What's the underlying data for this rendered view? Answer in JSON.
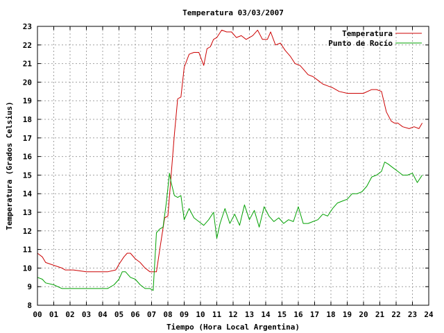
{
  "chart_data": {
    "type": "line",
    "title": "Temperatura 03/03/2007",
    "xlabel": "Tiempo (Hora Local Argentina)",
    "ylabel": "Temperatura (Grados Celsius)",
    "xlim": [
      0,
      24
    ],
    "ylim": [
      8,
      23
    ],
    "x_ticks": [
      "00",
      "01",
      "02",
      "03",
      "04",
      "05",
      "06",
      "07",
      "08",
      "09",
      "10",
      "11",
      "12",
      "13",
      "14",
      "15",
      "16",
      "17",
      "18",
      "19",
      "20",
      "21",
      "22",
      "23",
      "24"
    ],
    "y_ticks": [
      "8",
      "9",
      "10",
      "11",
      "12",
      "13",
      "14",
      "15",
      "16",
      "17",
      "18",
      "19",
      "20",
      "21",
      "22",
      "23"
    ],
    "grid": true,
    "legend_position": "top-right",
    "series": [
      {
        "name": "Temperatura",
        "color": "#cc0000",
        "x": [
          0,
          0.3,
          0.5,
          1.5,
          1.7,
          2.2,
          3.0,
          3.5,
          4.0,
          4.3,
          4.8,
          5.0,
          5.3,
          5.5,
          5.7,
          6.0,
          6.3,
          6.6,
          6.9,
          7.1,
          7.3,
          7.5,
          7.8,
          8.0,
          8.2,
          8.4,
          8.6,
          8.8,
          9.0,
          9.3,
          9.6,
          9.9,
          10.2,
          10.4,
          10.6,
          10.8,
          11.0,
          11.3,
          11.6,
          11.9,
          12.2,
          12.5,
          12.8,
          13.2,
          13.5,
          13.8,
          14.1,
          14.3,
          14.6,
          14.9,
          15.2,
          15.5,
          15.8,
          16.1,
          16.3,
          16.6,
          16.9,
          17.2,
          17.5,
          17.8,
          18.1,
          18.5,
          19.0,
          19.5,
          20.0,
          20.5,
          20.8,
          21.1,
          21.4,
          21.7,
          21.9,
          22.1,
          22.4,
          22.8,
          23.1,
          23.4,
          23.6
        ],
        "y": [
          10.8,
          10.6,
          10.3,
          10.0,
          9.9,
          9.9,
          9.8,
          9.8,
          9.8,
          9.8,
          9.9,
          10.2,
          10.6,
          10.8,
          10.8,
          10.5,
          10.3,
          10.0,
          9.8,
          9.8,
          9.8,
          11.0,
          12.7,
          12.8,
          15.0,
          17.2,
          19.1,
          19.2,
          20.8,
          21.5,
          21.6,
          21.6,
          20.9,
          21.8,
          21.9,
          22.3,
          22.4,
          22.8,
          22.7,
          22.7,
          22.4,
          22.5,
          22.3,
          22.5,
          22.8,
          22.3,
          22.3,
          22.7,
          22.0,
          22.1,
          21.7,
          21.4,
          21.0,
          20.9,
          20.7,
          20.4,
          20.3,
          20.1,
          19.9,
          19.8,
          19.7,
          19.5,
          19.4,
          19.4,
          19.4,
          19.6,
          19.6,
          19.5,
          18.4,
          17.9,
          17.8,
          17.8,
          17.6,
          17.5,
          17.6,
          17.5,
          17.8
        ]
      },
      {
        "name": "Punto de Rocío",
        "color": "#00a000",
        "x": [
          0,
          0.3,
          0.5,
          1.0,
          1.5,
          2.0,
          2.5,
          3.0,
          3.5,
          4.0,
          4.3,
          4.7,
          5.0,
          5.2,
          5.4,
          5.7,
          6.0,
          6.3,
          6.6,
          6.9,
          7.1,
          7.3,
          7.5,
          7.7,
          7.9,
          8.1,
          8.2,
          8.4,
          8.6,
          8.8,
          9.0,
          9.3,
          9.6,
          9.9,
          10.2,
          10.5,
          10.8,
          11.0,
          11.2,
          11.5,
          11.8,
          12.1,
          12.4,
          12.7,
          13.0,
          13.3,
          13.6,
          13.9,
          14.2,
          14.5,
          14.8,
          15.1,
          15.4,
          15.7,
          16.0,
          16.3,
          16.6,
          16.9,
          17.2,
          17.5,
          17.8,
          18.1,
          18.4,
          18.7,
          19.0,
          19.3,
          19.6,
          19.9,
          20.2,
          20.5,
          20.8,
          21.1,
          21.3,
          21.5,
          21.8,
          22.1,
          22.4,
          22.7,
          23.0,
          23.3,
          23.6
        ],
        "y": [
          9.5,
          9.4,
          9.2,
          9.1,
          8.9,
          8.9,
          8.9,
          8.9,
          8.9,
          8.9,
          8.9,
          9.1,
          9.4,
          9.8,
          9.8,
          9.5,
          9.4,
          9.1,
          8.9,
          8.9,
          8.8,
          11.9,
          12.1,
          12.2,
          13.5,
          15.1,
          14.6,
          13.9,
          13.8,
          13.9,
          12.6,
          13.2,
          12.7,
          12.5,
          12.3,
          12.6,
          13.0,
          11.6,
          12.4,
          13.2,
          12.4,
          12.9,
          12.3,
          13.4,
          12.6,
          13.1,
          12.2,
          13.3,
          12.8,
          12.5,
          12.7,
          12.4,
          12.6,
          12.5,
          13.3,
          12.4,
          12.4,
          12.5,
          12.6,
          12.9,
          12.8,
          13.2,
          13.5,
          13.6,
          13.7,
          14.0,
          14.0,
          14.1,
          14.4,
          14.9,
          15.0,
          15.2,
          15.7,
          15.6,
          15.4,
          15.2,
          15.0,
          15.0,
          15.1,
          14.6,
          15.0
        ]
      }
    ]
  }
}
